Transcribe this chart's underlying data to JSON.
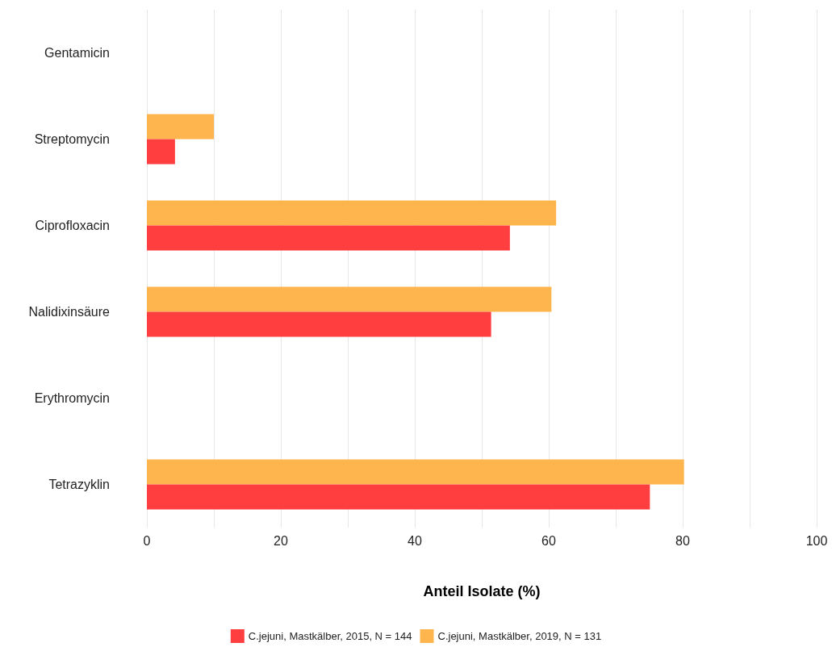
{
  "chart_data": {
    "type": "bar",
    "orientation": "horizontal",
    "xlabel": "Anteil Isolate (%)",
    "categories": [
      "Gentamicin",
      "Streptomycin",
      "Ciprofloxacin",
      "Nalidixinsäure",
      "Erythromycin",
      "Tetrazyklin"
    ],
    "series": [
      {
        "name": "C.jejuni, Mastkälber, 2015, N = 144",
        "color": "#ff3f3f",
        "values": [
          0,
          4.2,
          54.2,
          51.4,
          0,
          75.1
        ]
      },
      {
        "name": "C.jejuni, Mastkälber, 2019, N = 131",
        "color": "#ffb54d",
        "values": [
          0,
          10,
          61.1,
          60.4,
          0,
          80.2
        ]
      }
    ],
    "xlim": [
      0,
      100
    ],
    "xticks": [
      0,
      {
        "value": 10,
        "label": null
      },
      20,
      {
        "value": 30,
        "label": null
      },
      40,
      {
        "value": 50,
        "label": null
      },
      60,
      {
        "value": 70,
        "label": null
      },
      80,
      {
        "value": 90,
        "label": null
      },
      100
    ],
    "grid": "x",
    "legend": "bottom"
  }
}
